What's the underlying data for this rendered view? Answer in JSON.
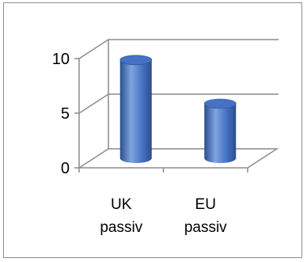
{
  "chart_data": {
    "type": "bar",
    "style": "3d-cylinder",
    "categories": [
      [
        "UK",
        "passiv"
      ],
      [
        "EU",
        "passiv"
      ]
    ],
    "values": [
      9,
      5
    ],
    "ylim": [
      0,
      10
    ],
    "y_ticks": [
      0,
      5,
      10
    ],
    "grid": true,
    "legend": "none",
    "colors": {
      "bar_fill": "#4572c4",
      "bar_dark": "#2b4e8f",
      "bar_light": "#7fa4e0",
      "grid_line": "#8c8c8c",
      "frame": "#8c8c8c"
    }
  }
}
